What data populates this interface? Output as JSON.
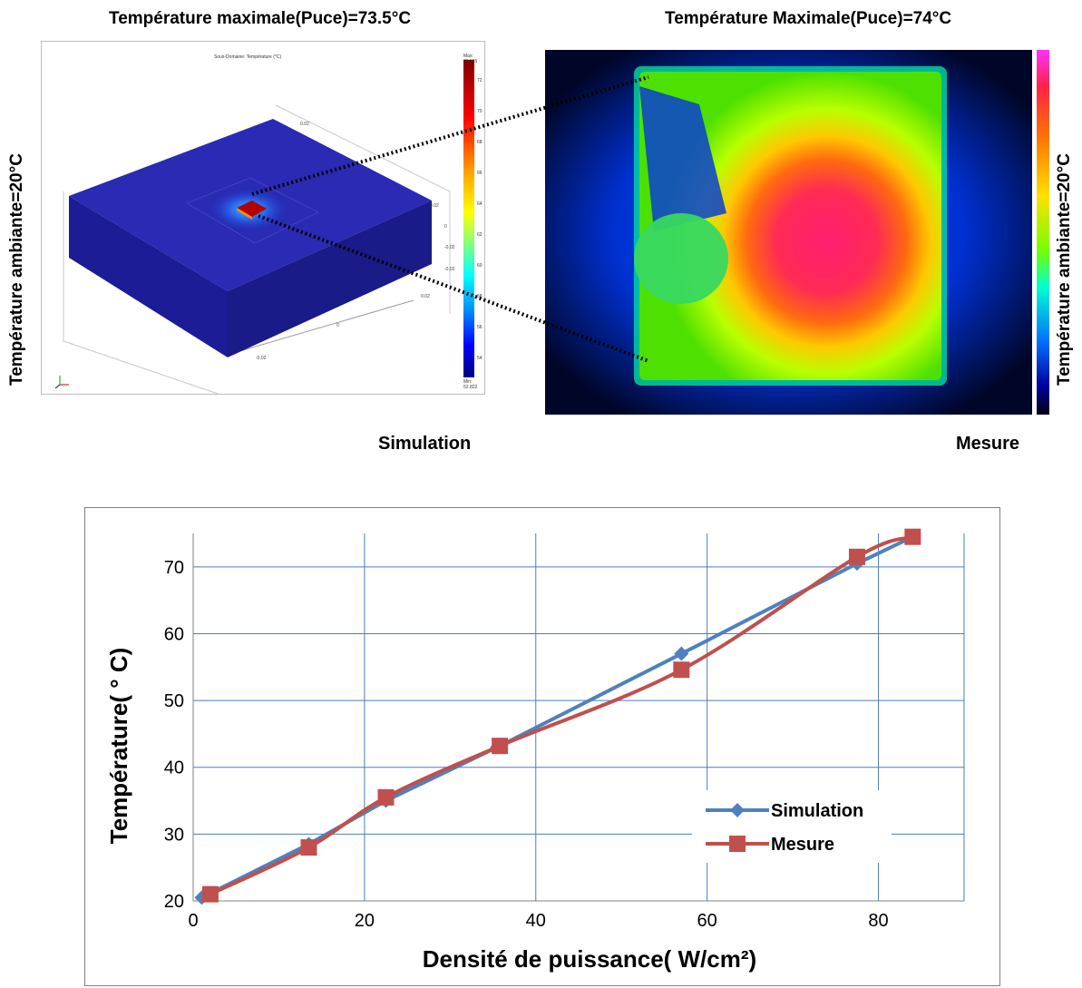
{
  "headers": {
    "sim_title": "Température maximale(Puce)=73.5°C",
    "meas_title": "Température Maximale(Puce)=74°C",
    "left_ambient": "Température ambiante=20°C",
    "right_ambient": "Température ambiante=20°C",
    "sim_caption": "Simulation",
    "meas_caption": "Mesure"
  },
  "simulation_view": {
    "inner_title": "Sous-Domaine: Température (°C)",
    "scale_max": "Max: 73.515",
    "scale_min": "Min: 52.822",
    "scale_ticks": [
      "72",
      "70",
      "68",
      "66",
      "64",
      "62",
      "60",
      "58",
      "56",
      "54"
    ],
    "axis_ticks": [
      "0.02",
      "0.02",
      "0",
      "-0.02",
      "0.02",
      "0",
      "-0.02",
      "-0.02"
    ],
    "colors": {
      "substrate": "#1f1fa8",
      "chip": "#b50000",
      "hotspot": "#00c8ff"
    }
  },
  "chart_data": {
    "type": "line",
    "title": "",
    "xlabel": "Densité de puissance( W/cm²)",
    "ylabel": "Température( °  C)",
    "xlim": [
      0,
      90
    ],
    "ylim": [
      20,
      75
    ],
    "xticks": [
      0,
      20,
      40,
      60,
      80
    ],
    "yticks": [
      20,
      30,
      40,
      50,
      60,
      70
    ],
    "grid": true,
    "legend": "bottom-right",
    "series": [
      {
        "name": "Simulation",
        "marker": "diamond",
        "color": "#4f81bd",
        "x": [
          1,
          13.5,
          22.5,
          35.5,
          57,
          77.5,
          84
        ],
        "y": [
          20.5,
          28.5,
          35,
          43,
          57,
          70.5,
          74.5
        ]
      },
      {
        "name": "Mesure",
        "marker": "square",
        "color": "#c0504d",
        "x": [
          2,
          13.5,
          22.5,
          35.8,
          57,
          77.5,
          84
        ],
        "y": [
          21,
          28,
          35.5,
          43.2,
          54.6,
          71.5,
          74.5
        ]
      }
    ]
  }
}
